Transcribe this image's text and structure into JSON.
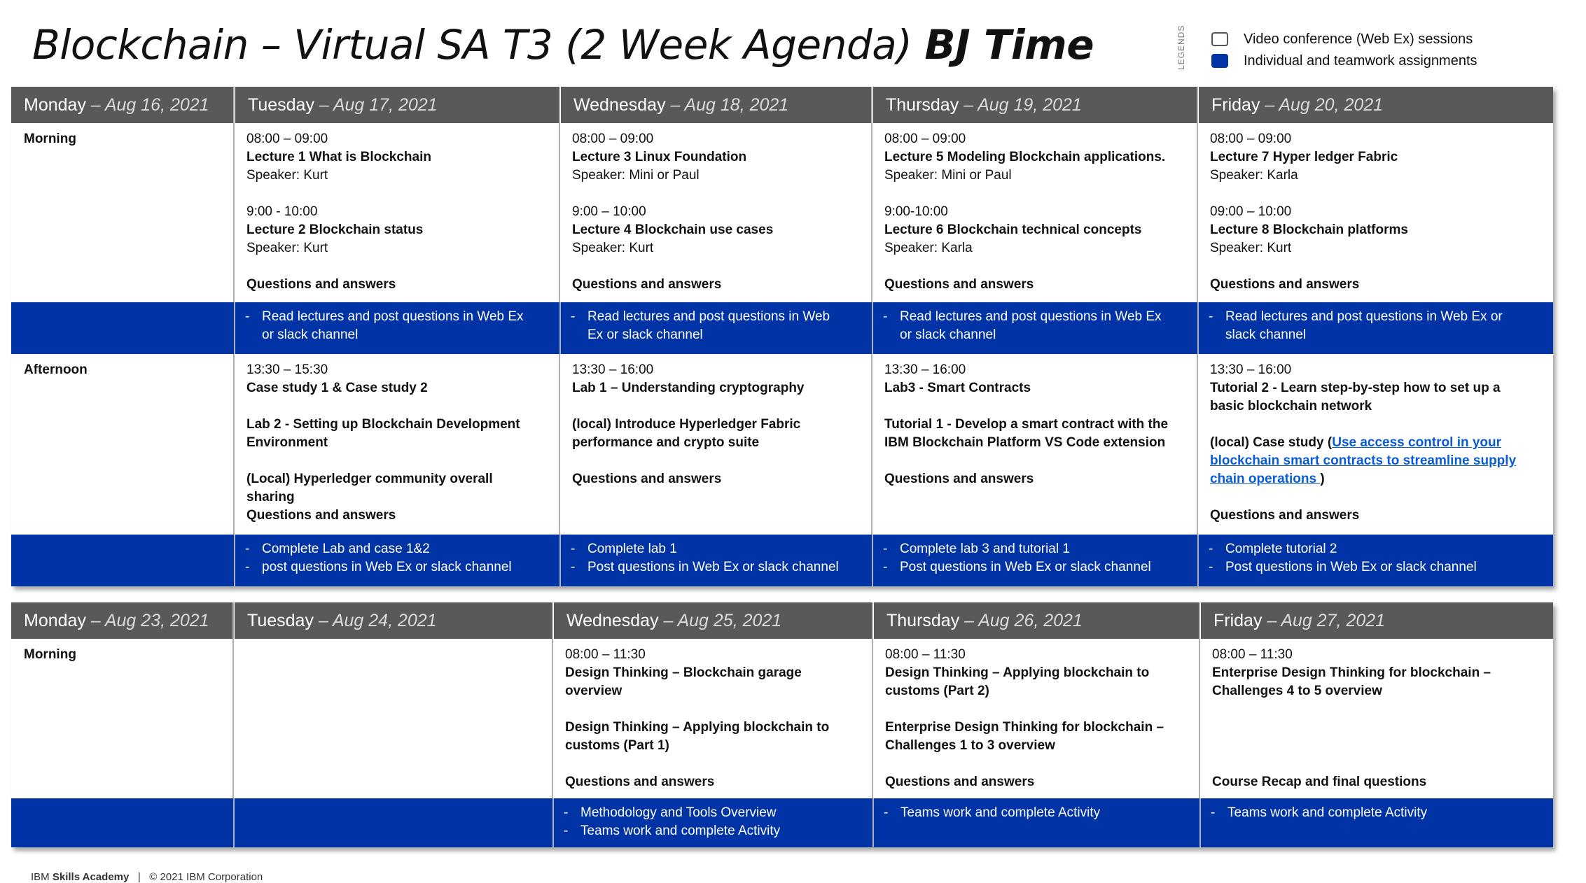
{
  "title": {
    "main": "Blockchain – Virtual SA T3 (2 Week Agenda)",
    "bold": "BJ Time"
  },
  "legend": {
    "tag": "LEGENDS",
    "items": [
      {
        "label": "Video conference (Web Ex) sessions",
        "swatch": "white"
      },
      {
        "label": "Individual and teamwork assignments",
        "swatch": "blue"
      }
    ]
  },
  "colors": {
    "header": "#595959",
    "band": "#0033a6",
    "link": "#0a5bd6"
  },
  "week1": {
    "days": [
      {
        "name": "Monday",
        "date": "– Aug 16, 2021"
      },
      {
        "name": "Tuesday",
        "date": "– Aug 17, 2021"
      },
      {
        "name": "Wednesday",
        "date": "–  Aug 18, 2021"
      },
      {
        "name": "Thursday",
        "date": "– Aug 19, 2021"
      },
      {
        "name": "Friday",
        "date": "–  Aug 20, 2021"
      }
    ],
    "morning_label": "Morning",
    "afternoon_label": "Afternoon",
    "morning": [
      {
        "time1": "08:00 – 09:00",
        "lecture1": "Lecture 1 What is Blockchain",
        "speaker1": "Speaker: Kurt",
        "time2": "9:00 - 10:00",
        "lecture2": "Lecture 2 Blockchain status",
        "speaker2": "Speaker: Kurt",
        "qa": "Questions and answers"
      },
      {
        "time1": "08:00 – 09:00",
        "lecture1": "Lecture 3 Linux Foundation",
        "speaker1": "Speaker: Mini or Paul",
        "time2": "9:00 – 10:00",
        "lecture2": "Lecture 4 Blockchain use cases",
        "speaker2": "Speaker: Kurt",
        "qa": "Questions and answers"
      },
      {
        "time1": "08:00 – 09:00",
        "lecture1": "Lecture 5 Modeling Blockchain applications.",
        "speaker1": "Speaker: Mini or Paul",
        "time2": "9:00-10:00",
        "lecture2": "Lecture 6 Blockchain technical concepts",
        "speaker2": "Speaker: Karla",
        "qa": "Questions and answers"
      },
      {
        "time1": "08:00 – 09:00",
        "lecture1": "Lecture 7 Hyper ledger Fabric",
        "speaker1": "Speaker: Karla",
        "time2": "09:00 – 10:00",
        "lecture2": "Lecture 8  Blockchain platforms",
        "speaker2": "Speaker: Kurt",
        "qa": "Questions and answers"
      }
    ],
    "morning_band": [
      [
        "Read lectures and post questions in Web Ex",
        "or slack channel"
      ],
      [
        "Read lectures and post questions in Web",
        "Ex or slack channel"
      ],
      [
        "Read lectures and post questions in Web Ex",
        "or slack channel"
      ],
      [
        "Read lectures and post questions in Web Ex or",
        "slack channel"
      ]
    ],
    "afternoon": {
      "tue": {
        "time": "13:30 – 15:30",
        "a": "Case study 1  & Case study 2",
        "b1": "Lab 2 - Setting up Blockchain Development",
        "b2": "Environment",
        "c1": "(Local) Hyperledger community overall",
        "c2": "sharing",
        "qa": "Questions and answers"
      },
      "wed": {
        "time": "13:30 – 16:00",
        "a": "Lab 1  – Understanding cryptography",
        "b1": "(local) Introduce Hyperledger Fabric",
        "b2": "performance and crypto suite",
        "qa": "Questions and answers"
      },
      "thu": {
        "time": "13:30 – 16:00",
        "a": "Lab3 - Smart Contracts",
        "b1": "Tutorial 1  - Develop a smart contract with the",
        "b2": "IBM Blockchain Platform VS Code extension",
        "qa": "Questions and answers"
      },
      "fri": {
        "time": "13:30 – 16:00",
        "a1": "Tutorial 2 - Learn step-by-step how to set up a",
        "a2": "basic blockchain network",
        "case_prefix": "(local) Case study (",
        "link1": "Use access control in your",
        "link2": "blockchain smart contracts to streamline supply",
        "link3": "chain operations ",
        "case_suffix": ")",
        "qa": "Questions and answers"
      }
    },
    "afternoon_band": [
      [
        "Complete Lab and  case 1&2",
        "post questions in Web Ex or slack channel"
      ],
      [
        "Complete lab 1",
        "Post questions in Web Ex or slack channel"
      ],
      [
        "Complete lab 3 and tutorial 1",
        "Post questions in Web Ex or slack channel"
      ],
      [
        "Complete tutorial 2",
        "Post questions in Web Ex or slack channel"
      ]
    ]
  },
  "week2": {
    "days": [
      {
        "name": "Monday",
        "date": "– Aug  23, 2021"
      },
      {
        "name": "Tuesday",
        "date": "– Aug 24, 2021"
      },
      {
        "name": "Wednesday",
        "date": "– Aug 25, 2021"
      },
      {
        "name": "Thursday",
        "date": "– Aug 26, 2021"
      },
      {
        "name": "Friday",
        "date": "– Aug 27, 2021"
      }
    ],
    "morning_label": "Morning",
    "wed": {
      "time": "08:00 – 11:30",
      "a1": "Design Thinking – Blockchain garage",
      "a2": "overview",
      "b1": "Design Thinking – Applying blockchain to",
      "b2": "customs (Part 1)",
      "qa": "Questions and answers"
    },
    "thu": {
      "time": "08:00 – 11:30",
      "a1": "Design Thinking – Applying blockchain to",
      "a2": "customs (Part 2)",
      "b1": "Enterprise Design Thinking for blockchain –",
      "b2": "Challenges 1 to 3 overview",
      "qa": "Questions and  answers"
    },
    "fri": {
      "time": "08:00 – 11:30",
      "a1": "Enterprise Design Thinking for blockchain –",
      "a2": "Challenges 4 to 5 overview",
      "qa": "Course Recap and final questions"
    },
    "band": [
      [
        "Methodology and Tools Overview",
        "Teams work and complete Activity"
      ],
      [
        "Teams work and complete Activity"
      ],
      [
        "Teams work and complete Activity"
      ]
    ]
  },
  "footer": {
    "brand_prefix": "IBM ",
    "brand_bold": "Skills Academy",
    "sep": "|",
    "copyright": "© 2021 IBM Corporation"
  }
}
